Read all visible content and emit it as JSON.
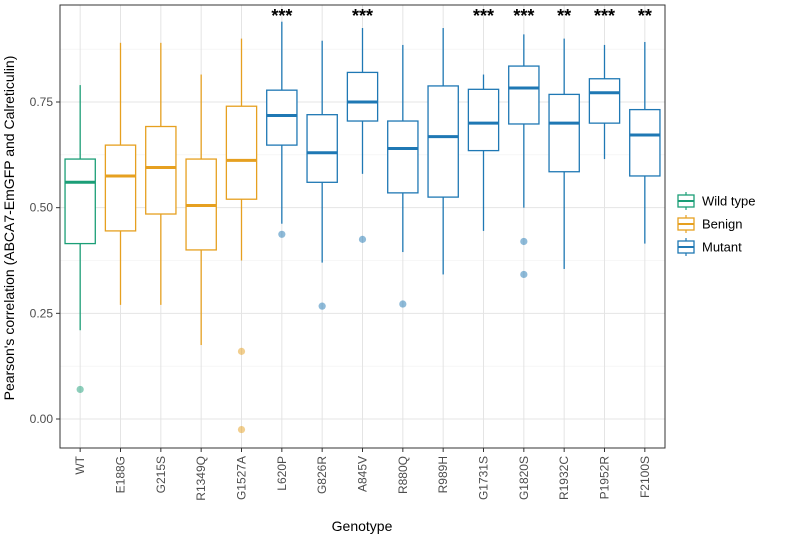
{
  "chart_data": {
    "type": "boxplot",
    "xlabel": "Genotype",
    "ylabel": "Pearson's correlation (ABCA7-EmGFP and Calreticulin)",
    "ylim": [
      -0.07,
      0.97
    ],
    "yticks": [
      0.0,
      0.25,
      0.5,
      0.75
    ],
    "ytick_labels": [
      "0.00",
      "0.25",
      "0.50",
      "0.75"
    ],
    "grid": true,
    "legend_position": "right",
    "legend": [
      {
        "label": "Wild type",
        "color": "#1b9e77"
      },
      {
        "label": "Benign",
        "color": "#e6a020"
      },
      {
        "label": "Mutant",
        "color": "#1f78b4"
      }
    ],
    "categories": [
      "WT",
      "E188G",
      "G215S",
      "R1349Q",
      "G1527A",
      "L620P",
      "G826R",
      "A845V",
      "R880Q",
      "R989H",
      "G1731S",
      "G1820S",
      "R1932C",
      "P1952R",
      "F2100S"
    ],
    "boxes": [
      {
        "genotype": "WT",
        "group": "Wild type",
        "min": 0.21,
        "q1": 0.415,
        "median": 0.56,
        "q3": 0.615,
        "max": 0.79,
        "outliers": [
          0.07
        ],
        "sig": ""
      },
      {
        "genotype": "E188G",
        "group": "Benign",
        "min": 0.27,
        "q1": 0.445,
        "median": 0.575,
        "q3": 0.648,
        "max": 0.89,
        "outliers": [],
        "sig": ""
      },
      {
        "genotype": "G215S",
        "group": "Benign",
        "min": 0.27,
        "q1": 0.485,
        "median": 0.595,
        "q3": 0.692,
        "max": 0.89,
        "outliers": [],
        "sig": ""
      },
      {
        "genotype": "R1349Q",
        "group": "Benign",
        "min": 0.175,
        "q1": 0.4,
        "median": 0.505,
        "q3": 0.615,
        "max": 0.815,
        "outliers": [],
        "sig": ""
      },
      {
        "genotype": "G1527A",
        "group": "Benign",
        "min": 0.375,
        "q1": 0.52,
        "median": 0.612,
        "q3": 0.74,
        "max": 0.9,
        "outliers": [
          0.16,
          -0.025
        ],
        "sig": ""
      },
      {
        "genotype": "L620P",
        "group": "Mutant",
        "min": 0.462,
        "q1": 0.648,
        "median": 0.718,
        "q3": 0.778,
        "max": 0.94,
        "outliers": [
          0.437
        ],
        "sig": "***"
      },
      {
        "genotype": "G826R",
        "group": "Mutant",
        "min": 0.37,
        "q1": 0.56,
        "median": 0.63,
        "q3": 0.72,
        "max": 0.895,
        "outliers": [
          0.267
        ],
        "sig": ""
      },
      {
        "genotype": "A845V",
        "group": "Mutant",
        "min": 0.58,
        "q1": 0.705,
        "median": 0.75,
        "q3": 0.82,
        "max": 0.925,
        "outliers": [
          0.425
        ],
        "sig": "***"
      },
      {
        "genotype": "R880Q",
        "group": "Mutant",
        "min": 0.395,
        "q1": 0.535,
        "median": 0.64,
        "q3": 0.705,
        "max": 0.885,
        "outliers": [
          0.272
        ],
        "sig": ""
      },
      {
        "genotype": "R989H",
        "group": "Mutant",
        "min": 0.342,
        "q1": 0.525,
        "median": 0.668,
        "q3": 0.788,
        "max": 0.925,
        "outliers": [],
        "sig": ""
      },
      {
        "genotype": "G1731S",
        "group": "Mutant",
        "min": 0.445,
        "q1": 0.635,
        "median": 0.7,
        "q3": 0.78,
        "max": 0.815,
        "outliers": [],
        "sig": "***"
      },
      {
        "genotype": "G1820S",
        "group": "Mutant",
        "min": 0.5,
        "q1": 0.698,
        "median": 0.783,
        "q3": 0.835,
        "max": 0.91,
        "outliers": [
          0.42,
          0.342
        ],
        "sig": "***"
      },
      {
        "genotype": "R1932C",
        "group": "Mutant",
        "min": 0.355,
        "q1": 0.585,
        "median": 0.7,
        "q3": 0.768,
        "max": 0.9,
        "outliers": [],
        "sig": "**"
      },
      {
        "genotype": "P1952R",
        "group": "Mutant",
        "min": 0.615,
        "q1": 0.7,
        "median": 0.772,
        "q3": 0.805,
        "max": 0.885,
        "outliers": [],
        "sig": "***"
      },
      {
        "genotype": "F2100S",
        "group": "Mutant",
        "min": 0.415,
        "q1": 0.575,
        "median": 0.672,
        "q3": 0.732,
        "max": 0.892,
        "outliers": [],
        "sig": "**"
      }
    ]
  }
}
